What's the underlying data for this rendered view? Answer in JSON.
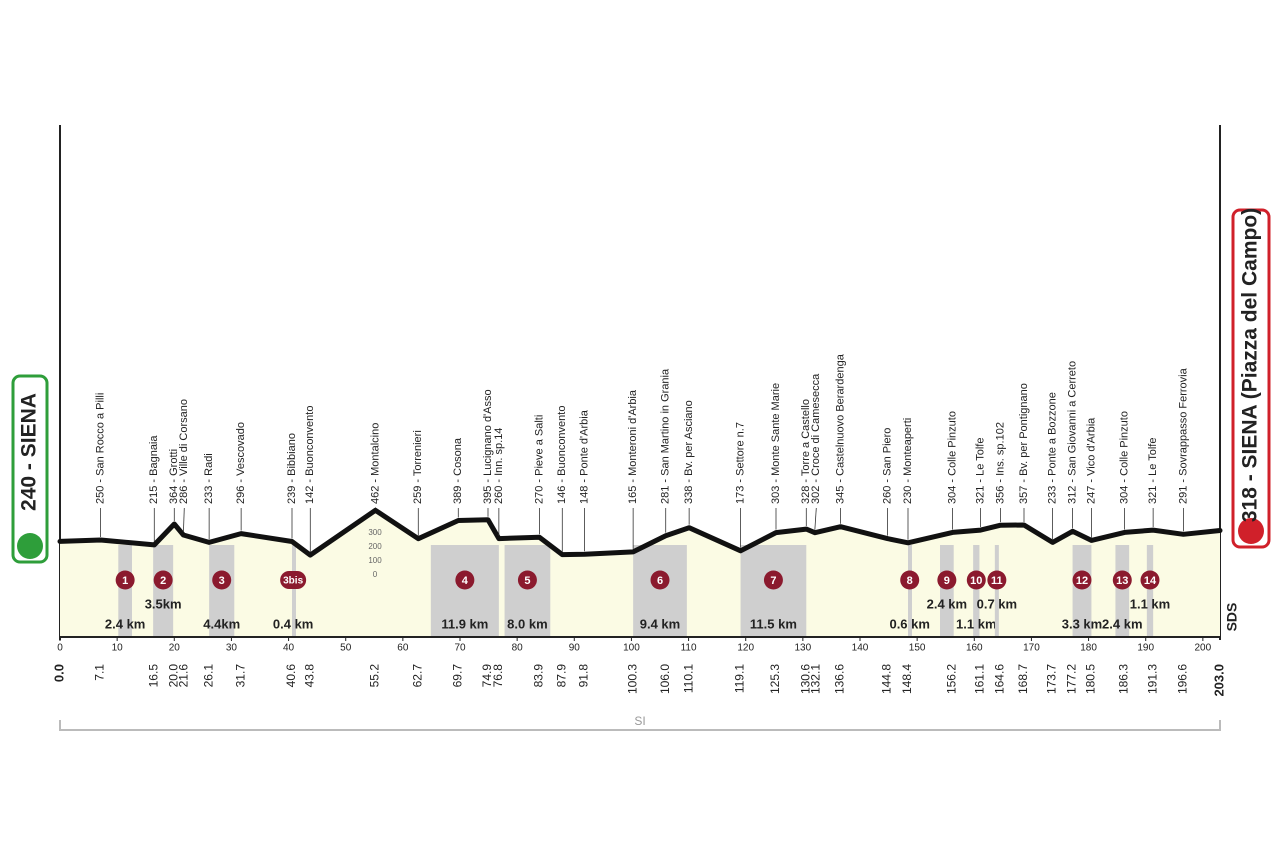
{
  "chart_data": {
    "type": "line",
    "start": {
      "label": "240 - SIENA",
      "km": {
        "value": 0,
        "label": "0.0"
      }
    },
    "finish": {
      "label": "318 - SIENA (Piazza del Campo)",
      "km": {
        "value": 203,
        "label": "203.0"
      }
    },
    "waypoints": [
      {
        "label": "250 - San Rocco a Pilli",
        "km": 7.1
      },
      {
        "label": "215 - Bagnaia",
        "km": 16.5
      },
      {
        "label": "364 - Grotti",
        "km": {
          "value": 20,
          "label": "20.0"
        }
      },
      {
        "label": "286 - Ville di Corsano",
        "km": 21.6
      },
      {
        "label": "233 - Radi",
        "km": 26.1
      },
      {
        "label": "296 - Vescovado",
        "km": 31.7
      },
      {
        "label": "239 - Bibbiano",
        "km": 40.6
      },
      {
        "label": "142 - Buonconvento",
        "km": 43.8
      },
      {
        "label": "462 - Montalcino",
        "km": 55.2
      },
      {
        "label": "259 - Torrenieri",
        "km": 62.7
      },
      {
        "label": "389 - Cosona",
        "km": 69.7
      },
      {
        "label": "395 - Lucignano d'Asso",
        "km": 74.9
      },
      {
        "label": "260 - Inn. sp.14",
        "km": 76.8
      },
      {
        "label": "270 - Pieve a Salti",
        "km": 83.9
      },
      {
        "label": "146 - Buonconvento",
        "km": 87.9
      },
      {
        "label": "148 - Ponte d'Arbia",
        "km": 91.8
      },
      {
        "label": "165 - Monteroni d'Arbia",
        "km": 100.3
      },
      {
        "label": "281 - San Martino in Grania",
        "km": {
          "value": 106,
          "label": "106.0"
        }
      },
      {
        "label": "338 - Bv. per Asciano",
        "km": 110.1
      },
      {
        "label": "173 - Settore n.7",
        "km": 119.1
      },
      {
        "label": "303 - Monte Sante Marie",
        "km": 125.3
      },
      {
        "label": "328 - Torre a Castello",
        "km": 130.6
      },
      {
        "label": "302 - Croce di Camesecca",
        "km": 132.1
      },
      {
        "label": "345 - Castelnuovo Berardenga",
        "km": 136.6
      },
      {
        "label": "260 - San Piero",
        "km": 144.8
      },
      {
        "label": "230 - Monteaperti",
        "km": 148.4
      },
      {
        "label": "304 - Colle Pinzuto",
        "km": 156.2
      },
      {
        "label": "321 - Le Tolfe",
        "km": 161.1
      },
      {
        "label": "356 - Ins. sp.102",
        "km": 164.6
      },
      {
        "label": "357 - Bv. per Pontignano",
        "km": 168.7
      },
      {
        "label": "233 - Ponte a Bozzone",
        "km": 173.7
      },
      {
        "label": "312 - San Giovanni a Cerreto",
        "km": 177.2
      },
      {
        "label": "247 - Vico d'Arbia",
        "km": 180.5
      },
      {
        "label": "304 - Colle Pinzuto",
        "km": 186.3
      },
      {
        "label": "321 - Le Tolfe",
        "km": 191.3
      },
      {
        "label": "291 - Sovrappasso Ferrovia",
        "km": 196.6
      }
    ],
    "profile": {
      "km": [
        0,
        7.1,
        16.5,
        20.0,
        21.6,
        26.1,
        31.7,
        40.6,
        43.8,
        55.2,
        62.7,
        69.7,
        74.9,
        76.8,
        83.9,
        87.9,
        91.8,
        100.3,
        106.0,
        110.1,
        119.1,
        125.3,
        130.6,
        132.1,
        136.6,
        144.8,
        148.4,
        156.2,
        161.1,
        164.6,
        168.7,
        173.7,
        177.2,
        180.5,
        186.3,
        191.3,
        196.6,
        203
      ],
      "altitude": [
        240,
        250,
        215,
        364,
        286,
        233,
        296,
        239,
        142,
        462,
        259,
        389,
        395,
        260,
        270,
        146,
        148,
        165,
        281,
        338,
        173,
        303,
        328,
        302,
        345,
        260,
        230,
        304,
        321,
        356,
        357,
        233,
        312,
        247,
        304,
        321,
        291,
        318
      ]
    },
    "sectors": [
      {
        "label": "1",
        "length": "2.4 km",
        "start": 10.2,
        "end": 12.6
      },
      {
        "label": "2",
        "length": "3.5km",
        "start": 16.3,
        "end": 19.8
      },
      {
        "label": "3",
        "length": "4.4km",
        "start": 26.1,
        "end": 30.5
      },
      {
        "label": "3bis",
        "length": "0.4 km",
        "start": 40.6,
        "end": 41.0
      },
      {
        "label": "4",
        "length": "11.9 km",
        "start": 64.9,
        "end": 76.8
      },
      {
        "label": "5",
        "length": "8.0 km",
        "start": 77.8,
        "end": 85.8
      },
      {
        "label": "6",
        "length": "9.4 km",
        "start": 100.3,
        "end": 109.7
      },
      {
        "label": "7",
        "length": "11.5 km",
        "start": 119.1,
        "end": 130.6
      },
      {
        "label": "8",
        "length": "0.6 km",
        "start": 148.4,
        "end": 149.0
      },
      {
        "label": "9",
        "length": "2.4 km",
        "start": 154.0,
        "end": 156.4
      },
      {
        "label": "10",
        "length": "1.1 km",
        "start": 159.8,
        "end": 160.9
      },
      {
        "label": "11",
        "length": "0.7 km",
        "start": 163.6,
        "end": 164.3
      },
      {
        "label": "12",
        "length": "3.3 km",
        "start": 177.2,
        "end": 180.5
      },
      {
        "label": "13",
        "length": "2.4 km",
        "start": 184.7,
        "end": 187.1
      },
      {
        "label": "14",
        "length": "1.1 km",
        "start": 190.2,
        "end": 191.3
      }
    ],
    "xlim": [
      0,
      203
    ],
    "xticks": [
      0,
      10,
      20,
      30,
      40,
      50,
      60,
      70,
      80,
      90,
      100,
      110,
      120,
      130,
      140,
      150,
      160,
      170,
      180,
      190,
      200
    ],
    "ylim": [
      0,
      300
    ],
    "yticks": [
      0,
      100,
      200,
      300
    ],
    "bottom_label": "SI",
    "logo": "SDS",
    "color": "#111111"
  }
}
